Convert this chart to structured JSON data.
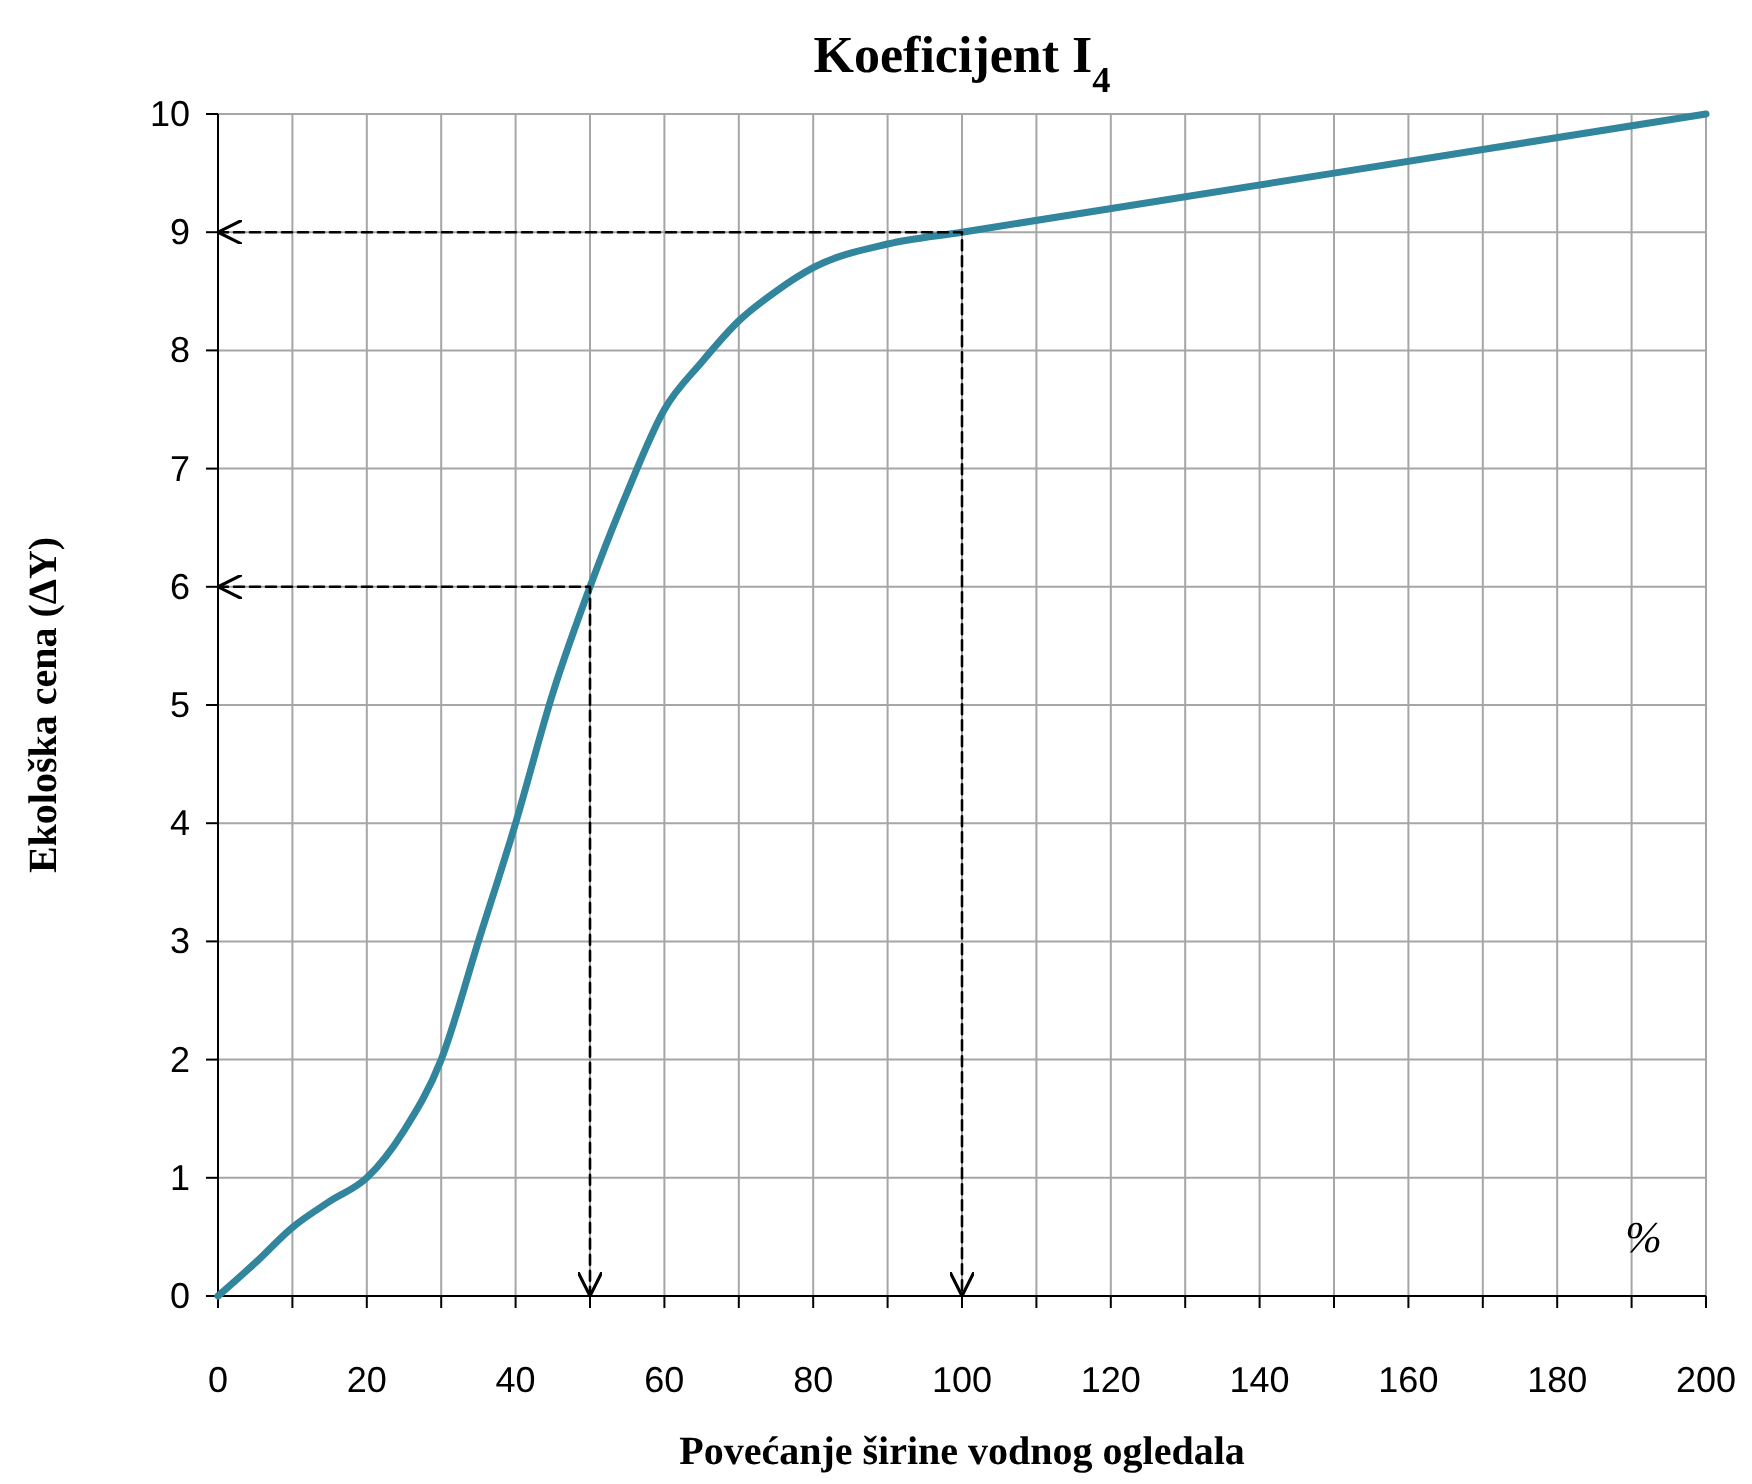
{
  "chart_data": {
    "type": "line",
    "title": "Koeficijent I$_{4}$",
    "xlabel": "Povećanje širine vodnog ogledala",
    "ylabel": "Ekološka cena (ΔY)",
    "annotations": [
      "%"
    ],
    "series": [
      {
        "color": "#31859c",
        "x": [
          0,
          5,
          10,
          15,
          20,
          25,
          30,
          35,
          40,
          45,
          50,
          55,
          60,
          65,
          70,
          75,
          80,
          90,
          100,
          200
        ],
        "values": [
          0,
          0.28,
          0.58,
          0.8,
          1.0,
          1.4,
          2.0,
          3.0,
          4.0,
          5.1,
          6.0,
          6.8,
          7.5,
          7.9,
          8.25,
          8.5,
          8.7,
          8.9,
          9.0,
          10
        ]
      },
      {
        "type": "line",
        "line_style": "dashed",
        "color": "#000000",
        "x": [
          0,
          50,
          50
        ],
        "values": [
          6,
          6,
          0
        ]
      },
      {
        "type": "line",
        "line_style": "dashed",
        "color": "#000000",
        "x": [
          0,
          100,
          100
        ],
        "values": [
          9,
          9,
          0
        ]
      }
    ],
    "xlim": [
      0,
      200
    ],
    "ylim": [
      0,
      10
    ],
    "xticks": [
      0,
      {
        "value": 10,
        "label": null
      },
      20,
      {
        "value": 30,
        "label": null
      },
      40,
      {
        "value": 50,
        "label": null
      },
      60,
      {
        "value": 70,
        "label": null
      },
      80,
      {
        "value": 90,
        "label": null
      },
      100,
      {
        "value": 110,
        "label": null
      },
      120,
      {
        "value": 130,
        "label": null
      },
      140,
      {
        "value": 150,
        "label": null
      },
      160,
      {
        "value": 170,
        "label": null
      },
      180,
      {
        "value": 190,
        "label": null
      },
      200
    ],
    "yticks": [
      0,
      1,
      2,
      3,
      4,
      5,
      6,
      7,
      8,
      9,
      10
    ],
    "grid": true,
    "marker": "none",
    "line_style": "solid"
  }
}
